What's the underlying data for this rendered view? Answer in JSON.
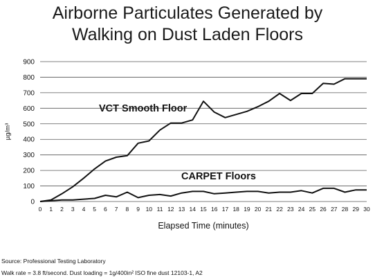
{
  "chart_data": {
    "type": "line",
    "title_lines": [
      "Airborne Particulates Generated by",
      "Walking on Dust Laden Floors"
    ],
    "xlabel": "Elapsed Time (minutes)",
    "ylabel": "µg/m³",
    "x": [
      0,
      1,
      2,
      3,
      4,
      5,
      6,
      7,
      8,
      9,
      10,
      11,
      12,
      13,
      14,
      15,
      16,
      17,
      18,
      19,
      20,
      21,
      22,
      23,
      24,
      25,
      26,
      27,
      28,
      29,
      30
    ],
    "xlim": [
      0,
      30
    ],
    "ylim": [
      0,
      900
    ],
    "yticks": [
      0,
      100,
      200,
      300,
      400,
      500,
      600,
      700,
      800,
      900
    ],
    "grid": "horizontal",
    "series": [
      {
        "name": "VCT Smooth Floor",
        "values": [
          0,
          10,
          50,
          95,
          150,
          210,
          260,
          285,
          295,
          375,
          390,
          460,
          505,
          505,
          525,
          645,
          575,
          540,
          560,
          580,
          610,
          645,
          695,
          650,
          695,
          695,
          760,
          755,
          790,
          790,
          790
        ]
      },
      {
        "name": "CARPET Floors",
        "values": [
          0,
          5,
          10,
          10,
          15,
          20,
          40,
          30,
          60,
          25,
          40,
          45,
          35,
          55,
          65,
          65,
          50,
          55,
          60,
          65,
          65,
          55,
          60,
          60,
          70,
          55,
          85,
          85,
          60,
          75,
          75
        ]
      }
    ]
  },
  "footer": {
    "source": "Source: Professional Testing Laboratory",
    "walk_rate": "Walk rate = 3.8 ft/second.  Dust loading = 1g/400in² ISO fine dust 12103-1, A2"
  }
}
